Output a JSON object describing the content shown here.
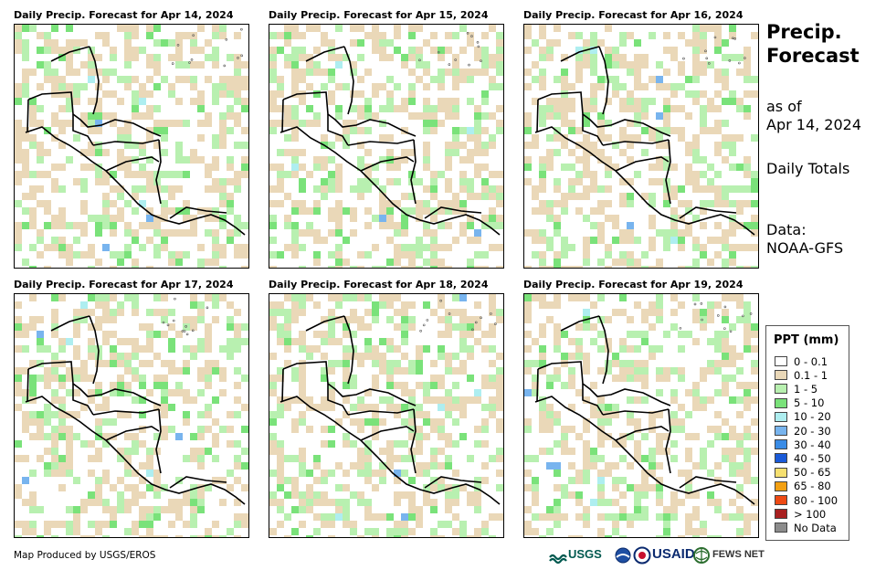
{
  "panels": [
    {
      "title": "Daily Precip. Forecast for Apr 14, 2024"
    },
    {
      "title": "Daily Precip. Forecast for Apr 15, 2024"
    },
    {
      "title": "Daily Precip. Forecast for Apr 16, 2024"
    },
    {
      "title": "Daily Precip. Forecast for Apr 17, 2024"
    },
    {
      "title": "Daily Precip. Forecast for Apr 18, 2024"
    },
    {
      "title": "Daily Precip. Forecast for Apr 19, 2024"
    }
  ],
  "sidebar": {
    "title_line1": "Precip.",
    "title_line2": "Forecast",
    "asof_line1": "as of",
    "asof_line2": "Apr 14, 2024",
    "totals": "Daily Totals",
    "data_line1": "Data:",
    "data_line2": "NOAA-GFS"
  },
  "legend": {
    "title": "PPT (mm)",
    "items": [
      {
        "label": "0 - 0.1",
        "color": "#ffffff"
      },
      {
        "label": "0.1 - 1",
        "color": "#ead8b8"
      },
      {
        "label": "1 - 5",
        "color": "#b8f0b0"
      },
      {
        "label": "5 - 10",
        "color": "#7ae27a"
      },
      {
        "label": "10 - 20",
        "color": "#aeeef0"
      },
      {
        "label": "20 - 30",
        "color": "#78b4ee"
      },
      {
        "label": "30 - 40",
        "color": "#3a8ce6"
      },
      {
        "label": "40 - 50",
        "color": "#1a5ad8"
      },
      {
        "label": "50 - 65",
        "color": "#f6e070"
      },
      {
        "label": "65 - 80",
        "color": "#f3a012"
      },
      {
        "label": "80 - 100",
        "color": "#ee4a14"
      },
      {
        "label": "> 100",
        "color": "#a82020"
      },
      {
        "label": "No Data",
        "color": "#8c8c8c"
      }
    ]
  },
  "footer": {
    "credit": "Map Produced by USGS/EROS",
    "logo_usgs": "USGS",
    "logo_usaid": "USAID",
    "logo_fews": "FEWS NET"
  }
}
